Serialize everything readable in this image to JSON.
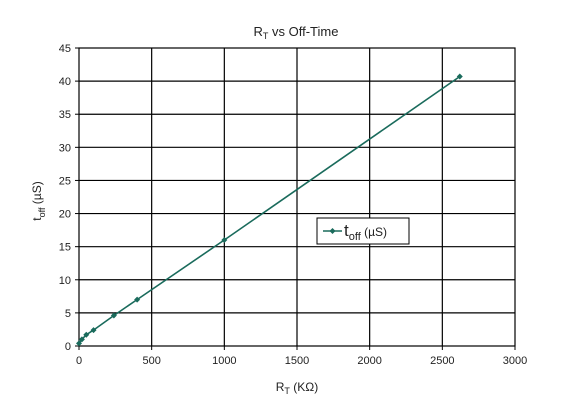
{
  "chart_data": {
    "type": "line",
    "title": {
      "main": "R",
      "sub": "T",
      "rest": " vs Off-Time"
    },
    "xlabel": {
      "main": "R",
      "sub": "T",
      "rest": " (KΩ)"
    },
    "ylabel": {
      "main": "t",
      "sub": "off",
      "rest": " (µS)"
    },
    "xlim": [
      0,
      3000
    ],
    "ylim": [
      0,
      45
    ],
    "xticks": [
      0,
      500,
      1000,
      1500,
      2000,
      2500,
      3000
    ],
    "yticks": [
      0,
      5,
      10,
      15,
      20,
      25,
      30,
      35,
      40,
      45
    ],
    "grid": true,
    "legend_position": "center-right",
    "series": [
      {
        "name": {
          "main": "t",
          "sub": "off",
          "rest": " (µS)"
        },
        "color": "#1a6b5c",
        "marker": "diamond",
        "x": [
          0,
          20,
          50,
          100,
          240,
          400,
          1000,
          2620
        ],
        "y": [
          0.4,
          1.0,
          1.7,
          2.4,
          4.6,
          7.0,
          16.0,
          40.7
        ]
      }
    ]
  }
}
